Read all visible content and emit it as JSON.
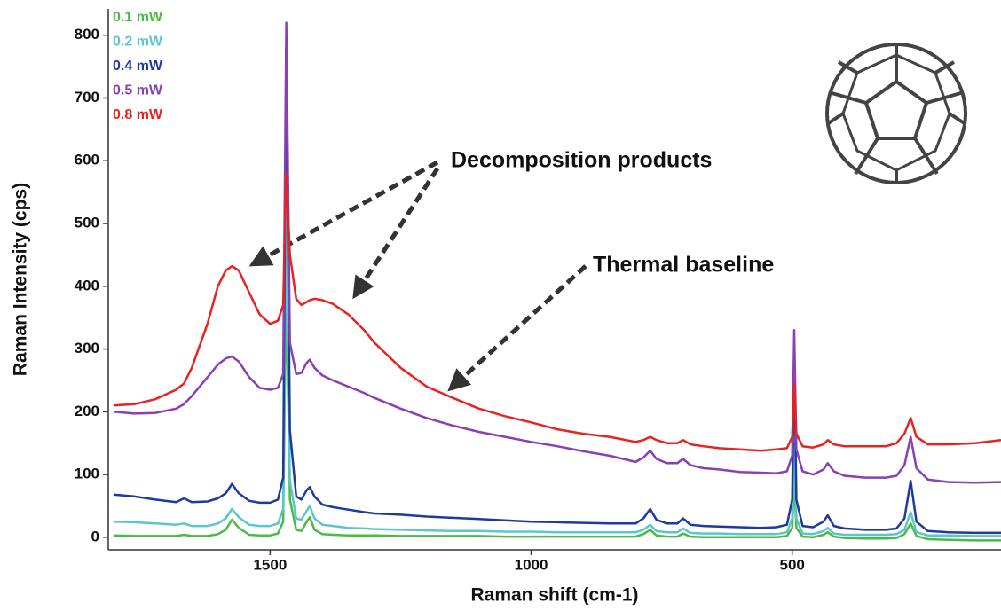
{
  "chart_data": {
    "type": "line",
    "x_label": "Raman shift (cm-1)",
    "y_label": "Raman Intensity (cps)",
    "xlim": [
      1810,
      100
    ],
    "ylim": [
      -20,
      842
    ],
    "xticks": [
      1500,
      1000,
      500
    ],
    "yticks": [
      0,
      100,
      200,
      300,
      400,
      500,
      600,
      700,
      800
    ],
    "legend": "upper left",
    "annotations": [
      "Decomposition products",
      "Thermal baseline"
    ],
    "x": [
      1800,
      1760,
      1720,
      1680,
      1665,
      1650,
      1620,
      1600,
      1585,
      1573,
      1560,
      1540,
      1520,
      1500,
      1485,
      1475,
      1469,
      1462,
      1450,
      1440,
      1430,
      1424,
      1415,
      1400,
      1380,
      1350,
      1320,
      1300,
      1250,
      1200,
      1150,
      1100,
      1050,
      1000,
      950,
      900,
      850,
      800,
      785,
      772,
      760,
      740,
      720,
      709,
      695,
      670,
      640,
      600,
      560,
      530,
      510,
      500,
      496,
      492,
      480,
      460,
      440,
      432,
      420,
      400,
      360,
      320,
      300,
      285,
      273,
      262,
      240,
      200,
      150,
      100
    ],
    "series": [
      {
        "name": "0.1 mW",
        "color": "#4cb944",
        "values": [
          3,
          2,
          2,
          2,
          4,
          2,
          2,
          5,
          12,
          28,
          15,
          4,
          3,
          3,
          6,
          25,
          400,
          60,
          12,
          10,
          25,
          32,
          12,
          5,
          4,
          3,
          3,
          3,
          2,
          2,
          2,
          2,
          1,
          1,
          1,
          1,
          1,
          1,
          5,
          12,
          3,
          1,
          1,
          6,
          1,
          0,
          0,
          0,
          0,
          0,
          2,
          15,
          90,
          15,
          1,
          0,
          4,
          8,
          1,
          -1,
          -2,
          -2,
          -1,
          5,
          22,
          2,
          -3,
          -4,
          -5,
          -5
        ]
      },
      {
        "name": "0.2 mW",
        "color": "#5cc6cf",
        "values": [
          25,
          24,
          22,
          20,
          22,
          18,
          18,
          22,
          30,
          45,
          32,
          20,
          18,
          18,
          22,
          45,
          520,
          90,
          30,
          28,
          42,
          50,
          30,
          20,
          18,
          15,
          14,
          13,
          12,
          11,
          10,
          10,
          9,
          9,
          8,
          8,
          8,
          8,
          12,
          20,
          10,
          8,
          8,
          14,
          7,
          6,
          6,
          5,
          5,
          5,
          8,
          30,
          150,
          30,
          6,
          5,
          10,
          15,
          6,
          4,
          4,
          4,
          5,
          12,
          40,
          8,
          3,
          3,
          2,
          2
        ]
      },
      {
        "name": "0.4 mW",
        "color": "#1f3a9e",
        "values": [
          68,
          65,
          60,
          56,
          62,
          56,
          57,
          62,
          70,
          85,
          70,
          58,
          55,
          55,
          60,
          95,
          780,
          170,
          65,
          60,
          75,
          80,
          65,
          52,
          48,
          44,
          40,
          38,
          36,
          33,
          31,
          29,
          27,
          25,
          24,
          23,
          22,
          22,
          30,
          45,
          28,
          22,
          22,
          30,
          20,
          18,
          17,
          16,
          15,
          16,
          20,
          60,
          300,
          60,
          18,
          16,
          25,
          35,
          18,
          14,
          12,
          12,
          14,
          30,
          90,
          25,
          10,
          8,
          7,
          7
        ]
      },
      {
        "name": "0.5 mW",
        "color": "#8a3fb5",
        "values": [
          200,
          197,
          198,
          205,
          212,
          225,
          255,
          275,
          285,
          288,
          280,
          255,
          238,
          235,
          238,
          260,
          820,
          310,
          260,
          262,
          278,
          283,
          270,
          258,
          250,
          240,
          230,
          222,
          205,
          190,
          178,
          168,
          160,
          152,
          145,
          137,
          130,
          120,
          127,
          138,
          125,
          118,
          118,
          125,
          115,
          110,
          108,
          104,
          103,
          102,
          105,
          130,
          330,
          140,
          105,
          100,
          108,
          118,
          105,
          98,
          95,
          95,
          98,
          115,
          160,
          110,
          92,
          88,
          87,
          88
        ]
      },
      {
        "name": "0.8 mW",
        "color": "#e8231f",
        "values": [
          210,
          212,
          220,
          235,
          245,
          270,
          340,
          400,
          425,
          432,
          425,
          390,
          355,
          340,
          345,
          370,
          580,
          450,
          380,
          370,
          375,
          378,
          380,
          378,
          372,
          355,
          330,
          310,
          270,
          240,
          222,
          205,
          193,
          183,
          172,
          165,
          160,
          152,
          155,
          160,
          155,
          150,
          150,
          155,
          148,
          145,
          142,
          140,
          138,
          140,
          142,
          160,
          245,
          165,
          145,
          143,
          148,
          155,
          148,
          145,
          145,
          145,
          150,
          165,
          190,
          160,
          148,
          148,
          150,
          155
        ]
      }
    ]
  }
}
